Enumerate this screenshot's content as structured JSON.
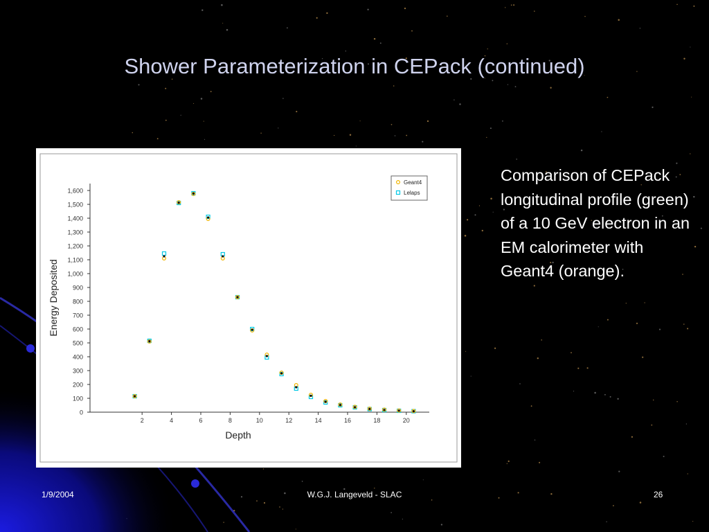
{
  "slide": {
    "title": "Shower Parameterization in CEPack (continued)",
    "description": "Comparison of CEPack longitudinal profile (green) of a 10 GeV electron in an EM calorimeter with Geant4 (orange).",
    "footer": {
      "date": "1/9/2004",
      "author": "W.G.J. Langeveld - SLAC",
      "page": "26"
    }
  },
  "colors": {
    "background": "#000000",
    "title": "#cfd3ee",
    "geant4": "#f0b400",
    "lelaps": "#00c8e6",
    "cepack": "#1a8a3a"
  },
  "chart_data": {
    "type": "scatter",
    "title": "",
    "xlabel": "Depth",
    "ylabel": "Energy Deposited",
    "xlim": [
      1,
      21
    ],
    "ylim": [
      0,
      1650
    ],
    "x_ticks": [
      2,
      4,
      6,
      8,
      10,
      12,
      14,
      16,
      18,
      20
    ],
    "y_ticks": [
      0,
      100,
      200,
      300,
      400,
      500,
      600,
      700,
      800,
      900,
      1000,
      1100,
      1200,
      1300,
      1400,
      1500,
      1600
    ],
    "y_tick_labels": [
      "0",
      "100",
      "200",
      "300",
      "400",
      "500",
      "600",
      "700",
      "800",
      "900",
      "1,000",
      "1,100",
      "1,200",
      "1,300",
      "1,400",
      "1,500",
      "1,600"
    ],
    "x_tick_labels": [
      "2",
      "4",
      "6",
      "8",
      "10",
      "12",
      "14",
      "16",
      "18",
      "20"
    ],
    "legend_position": "top-right",
    "grid": false,
    "series": [
      {
        "name": "Geant4",
        "marker": "circle",
        "x": [
          1.5,
          2.5,
          3.5,
          4.5,
          5.5,
          6.5,
          7.5,
          8.5,
          9.5,
          10.5,
          11.5,
          12.5,
          13.5,
          14.5,
          15.5,
          16.5,
          17.5,
          18.5,
          19.5,
          20.5
        ],
        "values": [
          115,
          510,
          1110,
          1515,
          1575,
          1395,
          1110,
          830,
          590,
          415,
          285,
          195,
          125,
          80,
          55,
          38,
          25,
          18,
          12,
          8
        ]
      },
      {
        "name": "Lelaps",
        "marker": "square",
        "x": [
          1.5,
          2.5,
          3.5,
          4.5,
          5.5,
          6.5,
          7.5,
          8.5,
          9.5,
          10.5,
          11.5,
          12.5,
          13.5,
          14.5,
          15.5,
          16.5,
          17.5,
          18.5,
          19.5,
          20.5
        ],
        "values": [
          115,
          515,
          1145,
          1510,
          1580,
          1410,
          1140,
          830,
          600,
          395,
          275,
          170,
          110,
          70,
          50,
          35,
          22,
          15,
          10,
          7
        ]
      },
      {
        "marker": "dot",
        "x": [
          1.5,
          2.5,
          3.5,
          4.5,
          5.5,
          6.5,
          7.5,
          8.5,
          9.5,
          10.5,
          11.5,
          12.5,
          13.5,
          14.5,
          15.5,
          16.5,
          17.5,
          18.5,
          19.5,
          20.5
        ],
        "values": [
          115,
          512,
          1125,
          1512,
          1578,
          1405,
          1125,
          830,
          595,
          405,
          280,
          180,
          118,
          75,
          52,
          36,
          23,
          16,
          11,
          7
        ]
      }
    ]
  }
}
